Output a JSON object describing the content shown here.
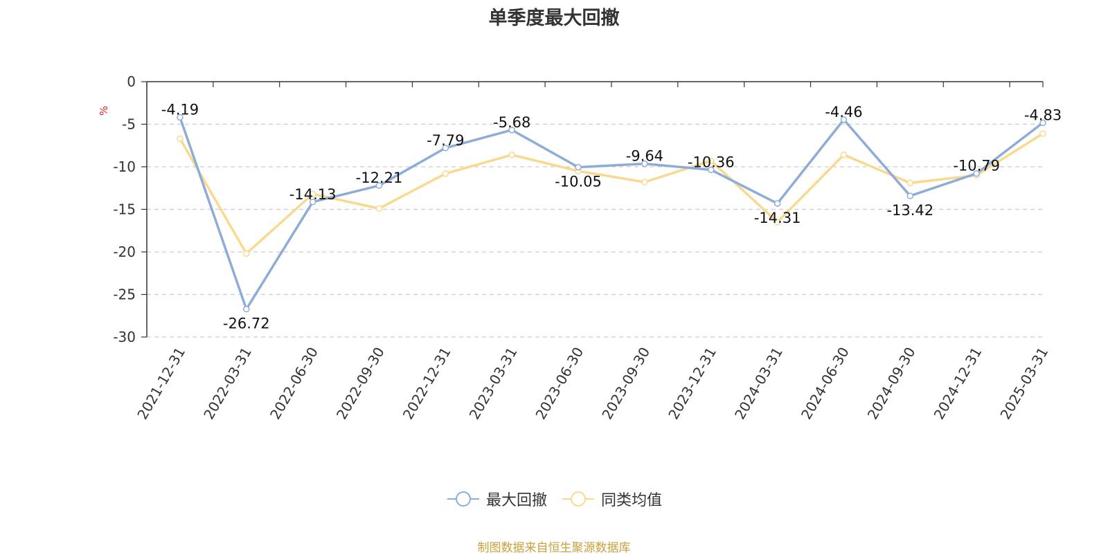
{
  "chart_data": {
    "type": "line",
    "title": "单季度最大回撤",
    "ylabel": "%",
    "ylim": [
      -30,
      0
    ],
    "yticks": [
      0,
      -5,
      -10,
      -15,
      -20,
      -25,
      -30
    ],
    "grid": true,
    "legend_position": "bottom",
    "categories": [
      "2021-12-31",
      "2022-03-31",
      "2022-06-30",
      "2022-09-30",
      "2022-12-31",
      "2023-03-31",
      "2023-06-30",
      "2023-09-30",
      "2023-12-31",
      "2024-03-31",
      "2024-06-30",
      "2024-09-30",
      "2024-12-31",
      "2025-03-31"
    ],
    "series": [
      {
        "name": "最大回撤",
        "color": "#8eacd8",
        "values": [
          -4.19,
          -26.72,
          -14.13,
          -12.21,
          -7.79,
          -5.68,
          -10.05,
          -9.64,
          -10.36,
          -14.31,
          -4.46,
          -13.42,
          -10.79,
          -4.83
        ],
        "labels": [
          "-4.19",
          "-26.72",
          "-14.13",
          "-12.21",
          "-7.79",
          "-5.68",
          "-10.05",
          "-9.64",
          "-10.36",
          "-14.31",
          "-4.46",
          "-13.42",
          "-10.79",
          "-4.83"
        ]
      },
      {
        "name": "同类均值",
        "color": "#f9d98f",
        "values": [
          -6.7,
          -20.2,
          -13.2,
          -14.9,
          -10.8,
          -8.6,
          -10.5,
          -11.8,
          -9.3,
          -16.5,
          -8.6,
          -11.9,
          -11.0,
          -6.1
        ]
      }
    ]
  },
  "source_text": "制图数据来自恒生聚源数据库",
  "source_color": "#c9a13a",
  "ylabel_color": "#e02020"
}
